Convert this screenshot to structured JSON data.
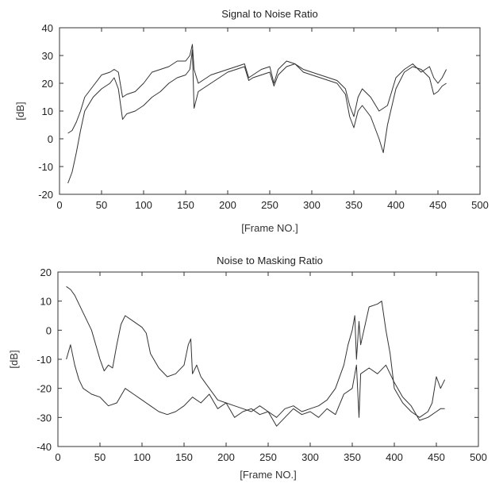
{
  "chart_data": [
    {
      "type": "line",
      "title": "Signal to Noise Ratio",
      "xlabel": "[Frame NO.]",
      "ylabel": "[dB]",
      "xlim": [
        0,
        500
      ],
      "ylim": [
        -20,
        40
      ],
      "xticks": [
        0,
        50,
        100,
        150,
        200,
        250,
        300,
        350,
        400,
        450,
        500
      ],
      "yticks": [
        -20,
        -10,
        0,
        10,
        20,
        30,
        40
      ],
      "grid": false,
      "series": [
        {
          "x": [
            10,
            15,
            20,
            25,
            30,
            40,
            50,
            60,
            65,
            70,
            75,
            80,
            90,
            100,
            110,
            120,
            130,
            140,
            150,
            155,
            158,
            160,
            165,
            170,
            180,
            190,
            200,
            210,
            220,
            225,
            230,
            240,
            250,
            255,
            260,
            270,
            280,
            290,
            300,
            310,
            320,
            330,
            340,
            345,
            350,
            355,
            360,
            370,
            380,
            390,
            400,
            410,
            420,
            430,
            440,
            445,
            450,
            455,
            460
          ],
          "y": [
            2,
            3,
            6,
            10,
            15,
            19,
            23,
            24,
            25,
            24,
            15,
            16,
            17,
            20,
            24,
            25,
            26,
            28,
            28,
            30,
            34,
            25,
            20,
            21,
            23,
            24,
            25,
            26,
            27,
            22,
            23,
            25,
            26,
            20,
            25,
            28,
            27,
            25,
            24,
            23,
            22,
            21,
            18,
            12,
            8,
            15,
            18,
            15,
            10,
            12,
            22,
            25,
            27,
            24,
            26,
            22,
            20,
            22,
            25
          ]
        },
        {
          "x": [
            10,
            15,
            20,
            25,
            30,
            40,
            50,
            60,
            65,
            70,
            75,
            80,
            90,
            100,
            110,
            120,
            130,
            140,
            150,
            155,
            158,
            160,
            165,
            170,
            180,
            190,
            200,
            210,
            220,
            225,
            230,
            240,
            250,
            255,
            260,
            270,
            280,
            290,
            300,
            310,
            320,
            330,
            340,
            345,
            350,
            355,
            360,
            370,
            380,
            385,
            390,
            400,
            410,
            420,
            430,
            440,
            445,
            450,
            455,
            460
          ],
          "y": [
            -16,
            -12,
            -5,
            3,
            10,
            15,
            18,
            20,
            22,
            18,
            7,
            9,
            10,
            12,
            15,
            17,
            20,
            22,
            23,
            25,
            32,
            11,
            17,
            18,
            20,
            22,
            24,
            25,
            26,
            21,
            22,
            23,
            24,
            19,
            23,
            26,
            27,
            24,
            23,
            22,
            21,
            20,
            16,
            8,
            4,
            10,
            12,
            8,
            0,
            -5,
            5,
            18,
            24,
            26,
            25,
            22,
            16,
            17,
            19,
            20
          ]
        }
      ]
    },
    {
      "type": "line",
      "title": "Noise to Masking Ratio",
      "xlabel": "[Frame NO.]",
      "ylabel": "[dB]",
      "xlim": [
        0,
        500
      ],
      "ylim": [
        -40,
        20
      ],
      "xticks": [
        0,
        50,
        100,
        150,
        200,
        250,
        300,
        350,
        400,
        450,
        500
      ],
      "yticks": [
        -40,
        -30,
        -20,
        -10,
        0,
        10,
        20
      ],
      "grid": false,
      "series": [
        {
          "x": [
            10,
            15,
            20,
            25,
            30,
            40,
            50,
            55,
            60,
            65,
            70,
            75,
            80,
            90,
            100,
            105,
            110,
            120,
            130,
            140,
            150,
            155,
            158,
            160,
            165,
            170,
            180,
            190,
            200,
            210,
            220,
            230,
            240,
            250,
            260,
            270,
            280,
            290,
            300,
            310,
            320,
            330,
            340,
            345,
            350,
            353,
            355,
            358,
            360,
            370,
            380,
            385,
            390,
            395,
            400,
            410,
            420,
            430,
            440,
            445,
            450,
            455,
            460
          ],
          "y": [
            15,
            14,
            12,
            9,
            6,
            0,
            -10,
            -14,
            -12,
            -13,
            -5,
            2,
            5,
            3,
            1,
            -1,
            -8,
            -13,
            -16,
            -15,
            -12,
            -5,
            -3,
            -15,
            -12,
            -16,
            -20,
            -24,
            -25,
            -26,
            -27,
            -28,
            -26,
            -28,
            -30,
            -27,
            -26,
            -28,
            -27,
            -26,
            -24,
            -20,
            -12,
            -5,
            0,
            5,
            -10,
            3,
            -5,
            8,
            9,
            10,
            0,
            -8,
            -20,
            -25,
            -28,
            -30,
            -28,
            -25,
            -16,
            -20,
            -17
          ]
        },
        {
          "x": [
            10,
            15,
            20,
            25,
            30,
            40,
            50,
            60,
            70,
            80,
            90,
            100,
            110,
            120,
            130,
            140,
            150,
            160,
            170,
            180,
            190,
            200,
            210,
            220,
            230,
            240,
            250,
            260,
            270,
            280,
            290,
            300,
            310,
            320,
            330,
            340,
            350,
            355,
            358,
            360,
            370,
            380,
            390,
            400,
            410,
            420,
            430,
            440,
            450,
            455,
            460
          ],
          "y": [
            -10,
            -5,
            -12,
            -17,
            -20,
            -22,
            -23,
            -26,
            -25,
            -20,
            -22,
            -24,
            -26,
            -28,
            -29,
            -28,
            -26,
            -23,
            -25,
            -22,
            -27,
            -25,
            -30,
            -28,
            -27,
            -29,
            -28,
            -33,
            -30,
            -27,
            -29,
            -28,
            -30,
            -27,
            -29,
            -22,
            -20,
            -12,
            -30,
            -15,
            -13,
            -15,
            -12,
            -18,
            -23,
            -26,
            -31,
            -30,
            -28,
            -27,
            -27
          ]
        }
      ]
    }
  ]
}
